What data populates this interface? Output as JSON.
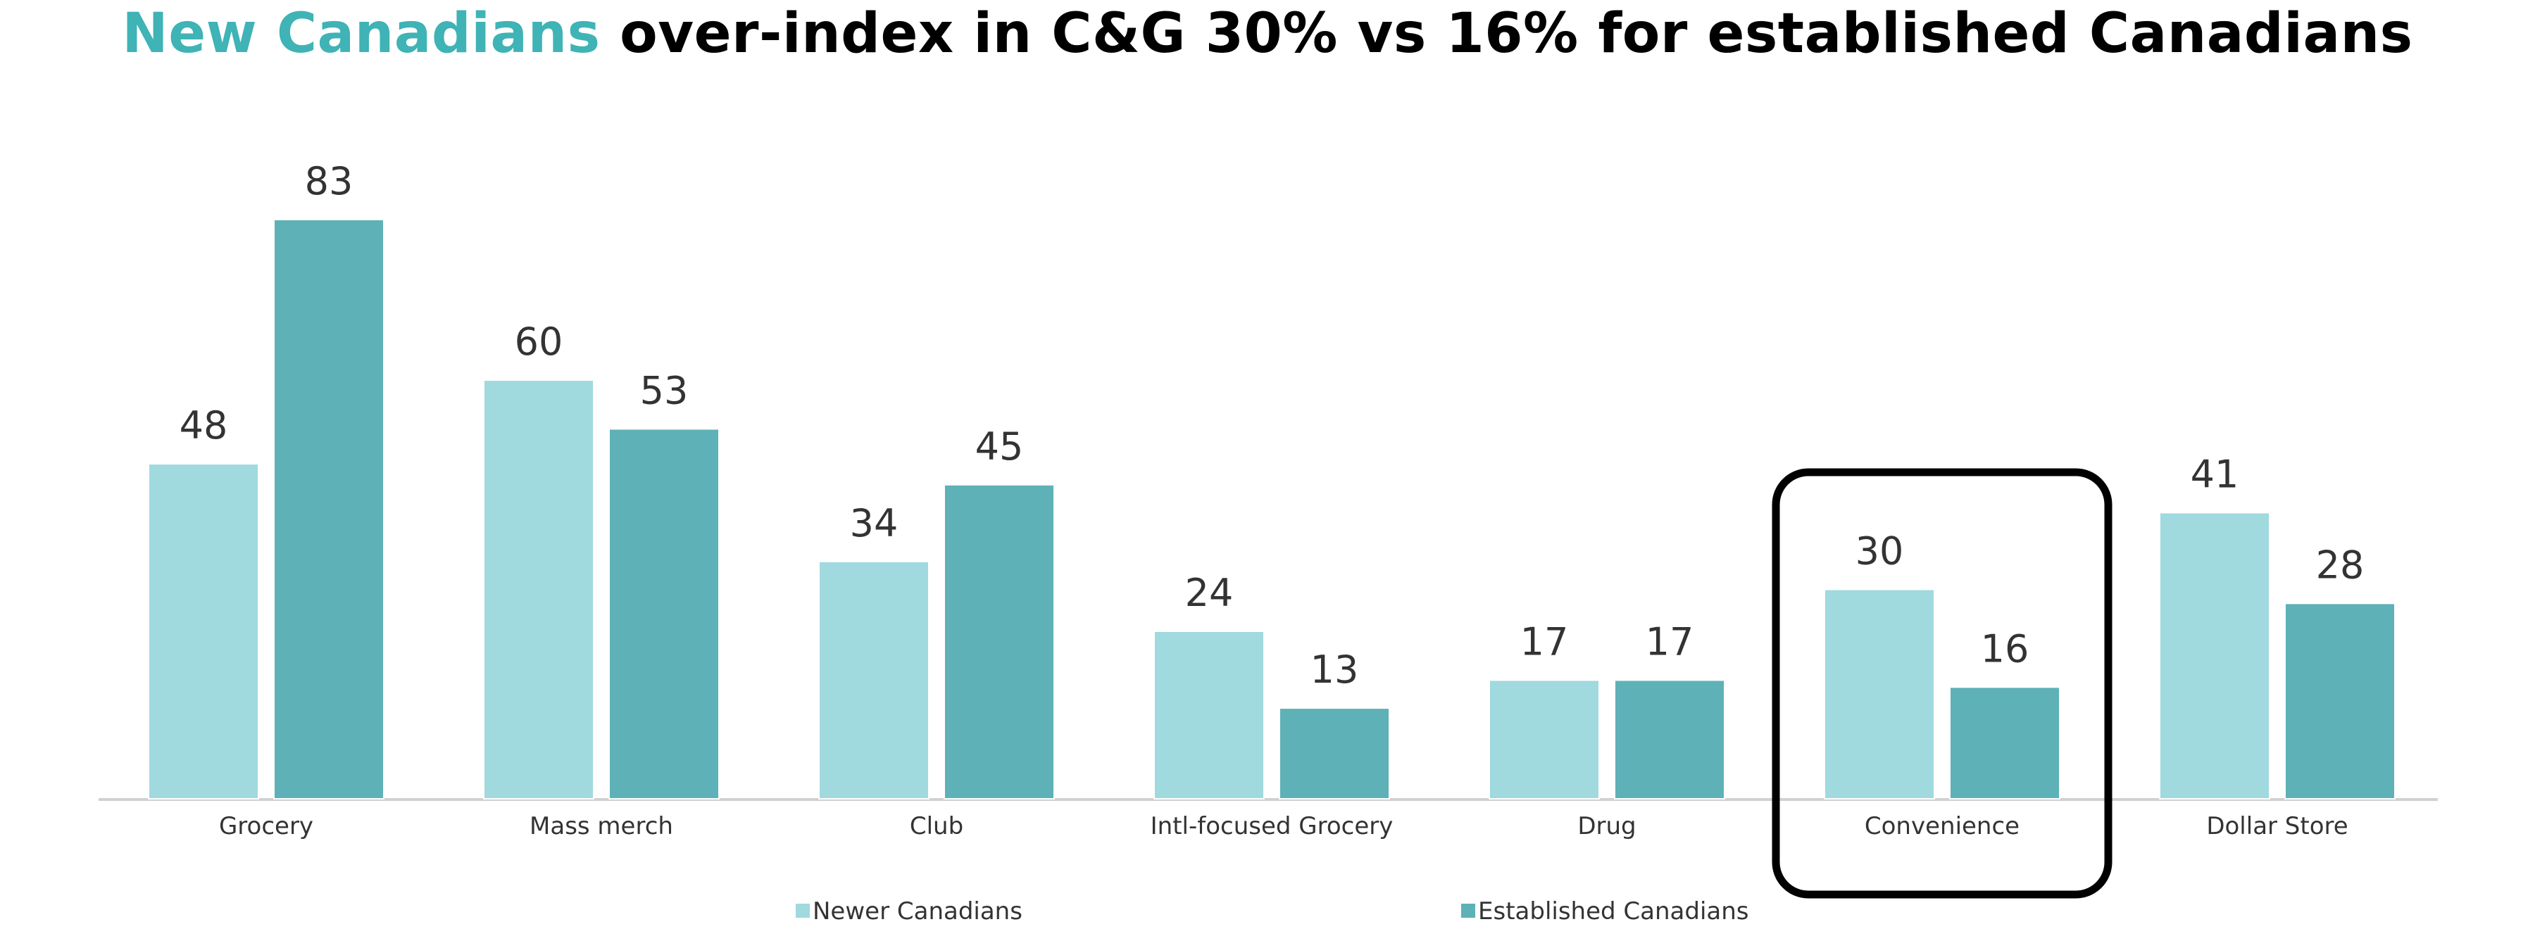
{
  "title": {
    "highlight": "New Canadians",
    "rest": " over-index in C&G 30% vs 16% for established Canadians"
  },
  "colors": {
    "accent": "#3fb3b5",
    "newer": "#a0d9de",
    "established": "#5db1b7",
    "highlight_box": "#000000"
  },
  "chart_data": {
    "type": "bar",
    "categories": [
      "Grocery",
      "Mass merch",
      "Club",
      "Intl-focused Grocery",
      "Drug",
      "Convenience",
      "Dollar Store"
    ],
    "series": [
      {
        "name": "Newer Canadians",
        "values": [
          48,
          60,
          34,
          24,
          17,
          30,
          41
        ]
      },
      {
        "name": "Established Canadians",
        "values": [
          83,
          53,
          45,
          13,
          17,
          16,
          28
        ]
      }
    ],
    "title": "New Canadians over-index in C&G 30% vs 16% for established Canadians",
    "xlabel": "",
    "ylabel": "",
    "ylim": [
      0,
      83
    ],
    "grid": false,
    "legend": "bottom",
    "highlighted_category": "Convenience"
  }
}
